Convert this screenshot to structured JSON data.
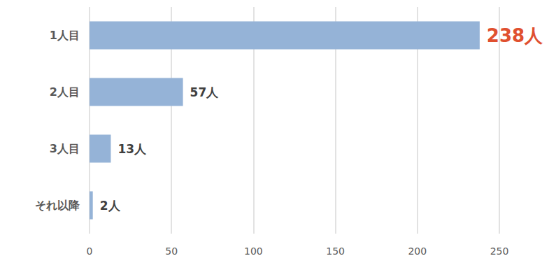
{
  "chart_data": {
    "type": "bar",
    "orientation": "horizontal",
    "categories": [
      "1人目",
      "2人目",
      "3人目",
      "それ以降"
    ],
    "values": [
      238,
      57,
      13,
      2
    ],
    "value_labels": [
      "238人",
      "57人",
      "13人",
      "2人"
    ],
    "color": "#95b3d7",
    "xlim": [
      0,
      250
    ],
    "xticks": [
      0,
      50,
      100,
      150,
      200,
      250
    ],
    "grid": true,
    "data_labels": true
  }
}
